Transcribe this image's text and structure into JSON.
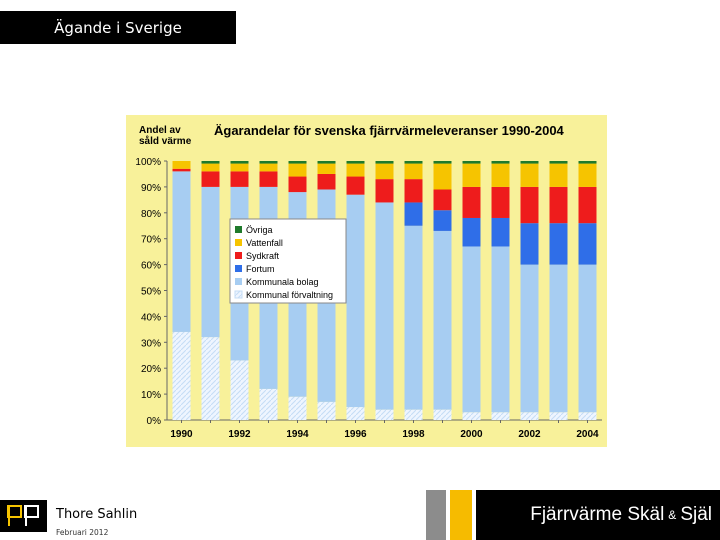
{
  "slide": {
    "title": "Ägande i Sverige",
    "author": "Thore Sahlin",
    "date": "Februari 2012",
    "tagline_left": "Fjärrvärme Skäl",
    "tagline_amp": "&",
    "tagline_right": "Själ",
    "logo_text": "PP"
  },
  "colors": {
    "panel_bg": "#f8f19a",
    "Övriga": "#1f7a2c",
    "Vattenfall": "#f6c400",
    "Sydkraft": "#ee1c1c",
    "Fortum": "#2f6ee8",
    "Kommunala bolag": "#a7cdf2",
    "Kommunal förvaltning": "#eef5ff"
  },
  "chart_data": {
    "type": "bar",
    "stacked": true,
    "title": "Ägarandelar för svenska fjärrvärmeleveranser 1990-2004",
    "ylabel": "Andel av såld värme",
    "ylim": [
      0,
      100
    ],
    "yticks": [
      "0%",
      "10%",
      "20%",
      "30%",
      "40%",
      "50%",
      "60%",
      "70%",
      "80%",
      "90%",
      "100%"
    ],
    "categories": [
      "1990",
      "1991",
      "1992",
      "1993",
      "1994",
      "1995",
      "1996",
      "1997",
      "1998",
      "1999",
      "2000",
      "2001",
      "2002",
      "2003",
      "2004"
    ],
    "xtick_labels": [
      "1990",
      "",
      "1992",
      "",
      "1994",
      "",
      "1996",
      "",
      "1998",
      "",
      "2000",
      "",
      "2002",
      "",
      "2004"
    ],
    "series": [
      {
        "name": "Kommunal förvaltning",
        "values": [
          34,
          32,
          23,
          12,
          9,
          7,
          5,
          4,
          4,
          4,
          3,
          3,
          3,
          3,
          3
        ]
      },
      {
        "name": "Kommunala bolag",
        "values": [
          62,
          58,
          67,
          78,
          79,
          82,
          82,
          80,
          71,
          69,
          64,
          64,
          57,
          57,
          57
        ]
      },
      {
        "name": "Fortum",
        "values": [
          0,
          0,
          0,
          0,
          0,
          0,
          0,
          0,
          9,
          8,
          11,
          11,
          16,
          16,
          16
        ]
      },
      {
        "name": "Sydkraft",
        "values": [
          1,
          6,
          6,
          6,
          6,
          6,
          7,
          9,
          9,
          8,
          12,
          12,
          14,
          14,
          14
        ]
      },
      {
        "name": "Vattenfall",
        "values": [
          3,
          3,
          3,
          3,
          5,
          4,
          5,
          6,
          6,
          10,
          9,
          9,
          9,
          9,
          9
        ]
      },
      {
        "name": "Övriga",
        "values": [
          0,
          1,
          1,
          1,
          1,
          1,
          1,
          1,
          1,
          1,
          1,
          1,
          1,
          1,
          1
        ]
      }
    ],
    "legend_order": [
      "Övriga",
      "Vattenfall",
      "Sydkraft",
      "Fortum",
      "Kommunala bolag",
      "Kommunal förvaltning"
    ]
  }
}
